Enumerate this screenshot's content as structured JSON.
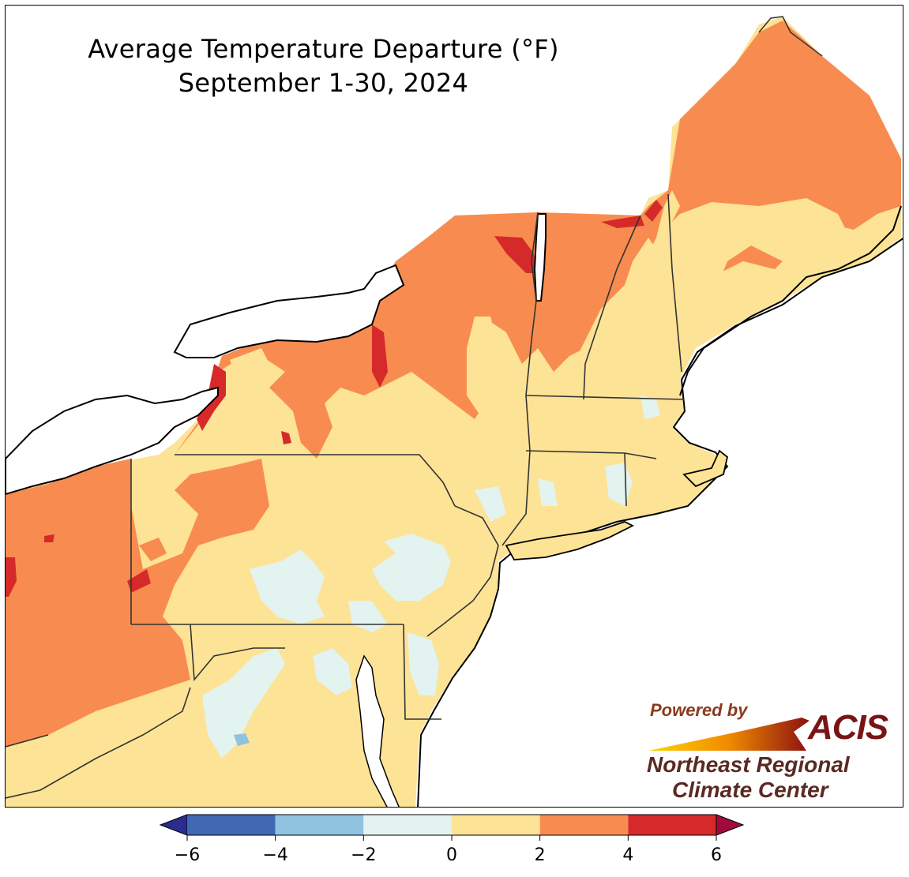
{
  "title": {
    "line1": "Average Temperature Departure (°F)",
    "line2": "September 1-30, 2024"
  },
  "legend": {
    "bins": [
      {
        "from": -6,
        "to": -4,
        "color": "#4169b3"
      },
      {
        "from": -4,
        "to": -2,
        "color": "#8fc3e0"
      },
      {
        "from": -2,
        "to": 0,
        "color": "#e3f3ef"
      },
      {
        "from": 0,
        "to": 2,
        "color": "#fde396"
      },
      {
        "from": 2,
        "to": 4,
        "color": "#f88c50"
      },
      {
        "from": 4,
        "to": 6,
        "color": "#d62a2a"
      }
    ],
    "under_color": "#2b2c8f",
    "over_color": "#a10b3c",
    "ticks": [
      "−6",
      "−4",
      "−2",
      "0",
      "2",
      "4",
      "6"
    ]
  },
  "logo": {
    "powered_by": "Powered by",
    "acis": "ACIS",
    "org_line1": "Northeast Regional",
    "org_line2": "Climate Center"
  },
  "map": {
    "region": "Northeastern United States",
    "colors": {
      "background": "#ffffff",
      "lake": "#ffffff",
      "state_border": "#333333",
      "county_border": "#b9a98a",
      "coastline": "#000000"
    }
  }
}
